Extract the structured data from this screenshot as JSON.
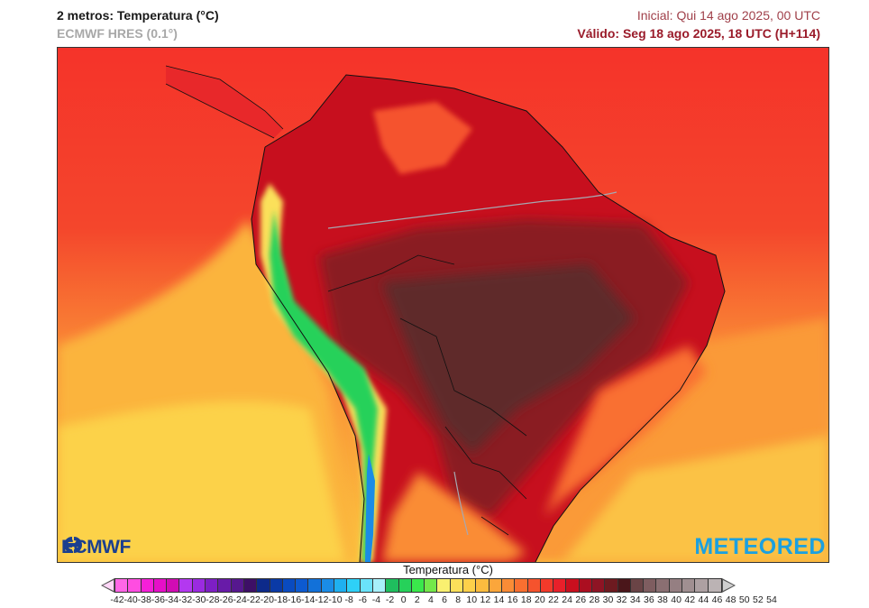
{
  "header": {
    "title": "2 metros: Temperatura (°C)",
    "model": "ECMWF HRES (0.1°)",
    "init": "Inicial: Qui 14 ago 2025, 00 UTC",
    "valid": "Válido: Seg 18 ago 2025, 18 UTC (H+114)"
  },
  "map": {
    "region": "South America",
    "variable": "2 m temperature",
    "logos": {
      "left": "ECMWF",
      "right": "METEORED"
    }
  },
  "colorbar": {
    "title": "Temperatura (°C)",
    "ticks": [
      "-42",
      "-40",
      "-38",
      "-36",
      "-34",
      "-32",
      "-30",
      "-28",
      "-26",
      "-24",
      "-22",
      "-20",
      "-18",
      "-16",
      "-14",
      "-12",
      "-10",
      "-8",
      "-6",
      "-4",
      "-2",
      "0",
      "2",
      "4",
      "6",
      "8",
      "10",
      "12",
      "14",
      "16",
      "18",
      "20",
      "22",
      "24",
      "26",
      "28",
      "30",
      "32",
      "34",
      "36",
      "38",
      "40",
      "42",
      "44",
      "46",
      "48",
      "50",
      "52",
      "54"
    ],
    "colors": [
      "#ffc8f5",
      "#ff66e6",
      "#ff4de1",
      "#f51fd8",
      "#e60fc8",
      "#d10cb4",
      "#b338f0",
      "#9b2be0",
      "#7d1fc4",
      "#681ba8",
      "#56188e",
      "#3d0f66",
      "#0d2a8a",
      "#0a3aa6",
      "#0a4bc0",
      "#0d5ad0",
      "#1271d9",
      "#1a8ce6",
      "#1fb0f0",
      "#2ed0f7",
      "#6ae3fa",
      "#a7f0fa",
      "#1fbe5e",
      "#26d15a",
      "#3ae84b",
      "#74e84a",
      "#f9f070",
      "#fbe05a",
      "#fdd04a",
      "#fcbc3f",
      "#fba63b",
      "#fa8c36",
      "#f96f30",
      "#f5532d",
      "#f23a2a",
      "#e8202a",
      "#c90f1e",
      "#ab0e20",
      "#8e1424",
      "#6d1a20",
      "#4a161a",
      "#6a4446",
      "#7e5d60",
      "#8a6f72",
      "#957f82",
      "#a08f91",
      "#ada0a2",
      "#bbb3b4",
      "#cfcfcf"
    ]
  }
}
